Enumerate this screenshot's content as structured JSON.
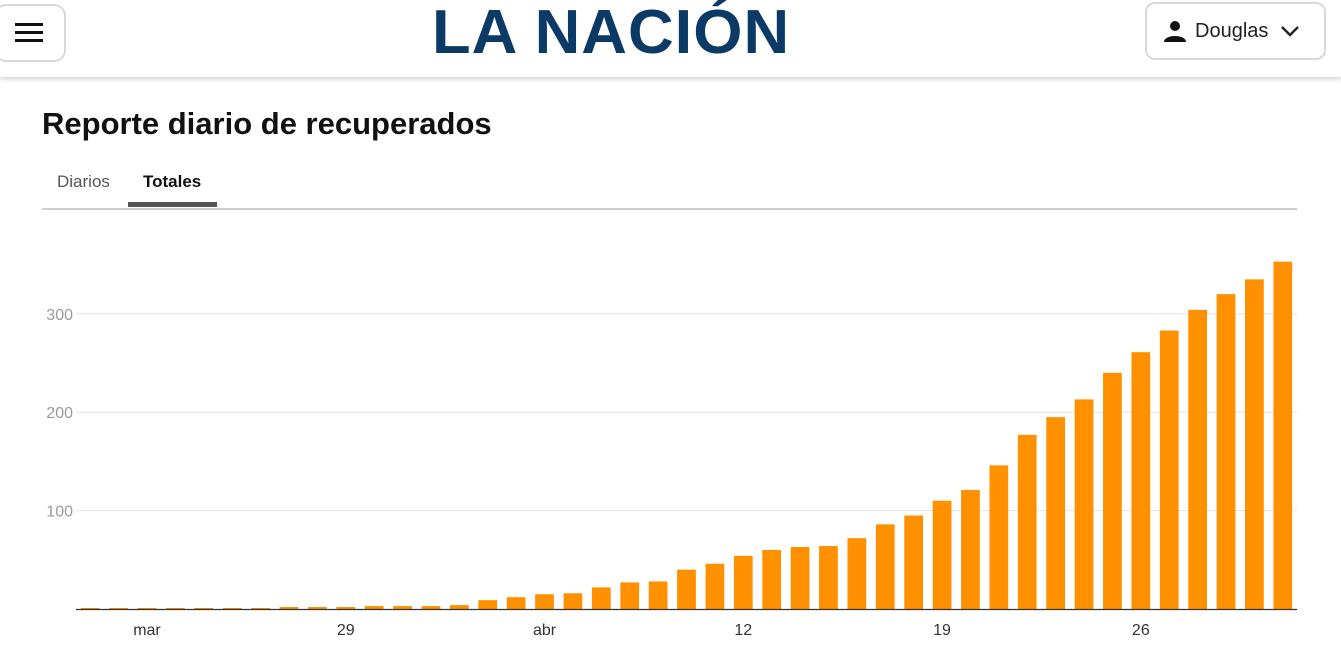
{
  "header": {
    "menu_icon": "hamburger-menu-icon",
    "logo_text": "LA NACIÓN",
    "logo_color": "#0b3a66",
    "user_icon": "person-icon",
    "user_name": "Douglas",
    "user_chevron_icon": "chevron-down-icon"
  },
  "page_title": "Reporte diario de recuperados",
  "tabs": [
    {
      "label": "Diarios",
      "active": false
    },
    {
      "label": "Totales",
      "active": true
    }
  ],
  "chart_data": {
    "type": "bar",
    "title": "",
    "xlabel": "",
    "ylabel": "",
    "bar_color": "#ff9100",
    "ylim": [
      0,
      360
    ],
    "yticks": [
      100,
      200,
      300
    ],
    "grid": true,
    "x_tick_labels": [
      {
        "label": "mar",
        "index": 2
      },
      {
        "label": "29",
        "index": 9
      },
      {
        "label": "abr",
        "index": 16
      },
      {
        "label": "12",
        "index": 23
      },
      {
        "label": "19",
        "index": 30
      },
      {
        "label": "26",
        "index": 37
      }
    ],
    "values": [
      1,
      1,
      1,
      1,
      1,
      1,
      1,
      2,
      2,
      2,
      3,
      3,
      3,
      4,
      9,
      12,
      15,
      16,
      22,
      27,
      28,
      40,
      46,
      54,
      60,
      63,
      64,
      72,
      86,
      95,
      110,
      121,
      146,
      177,
      195,
      213,
      240,
      261,
      283,
      304,
      320,
      335,
      353
    ]
  }
}
